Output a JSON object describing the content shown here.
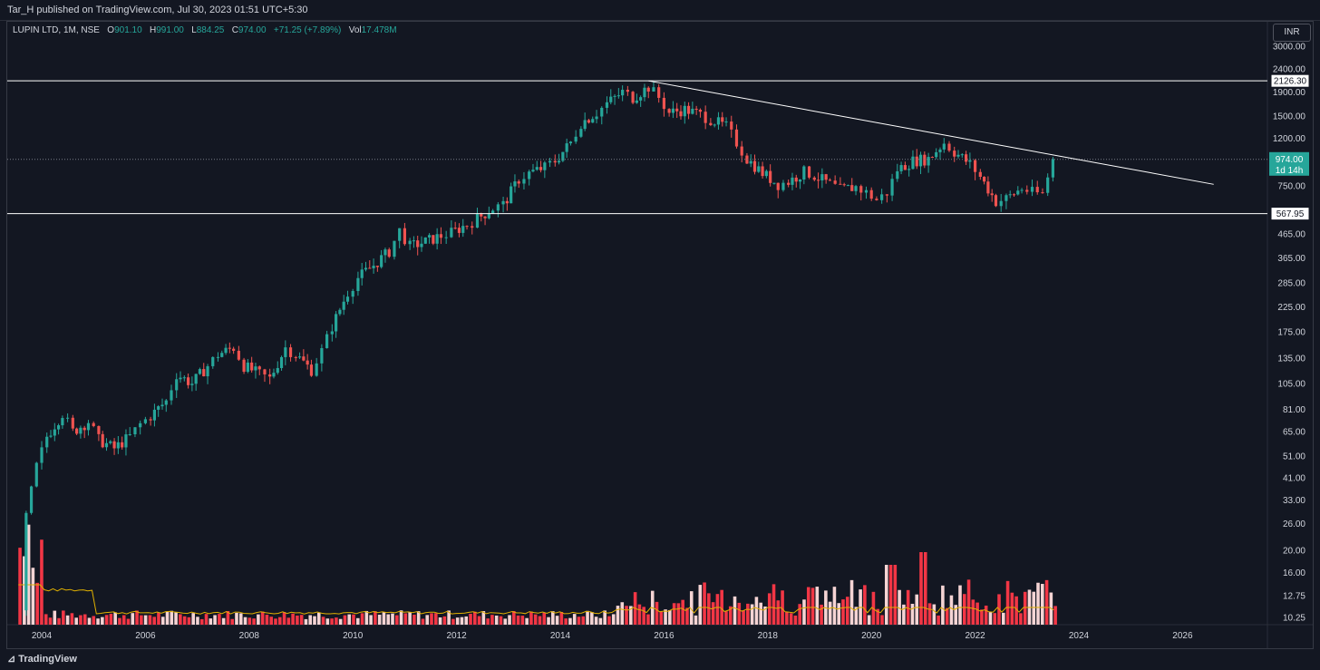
{
  "header": {
    "published_text": "Tar_H published on TradingView.com, Jul 30, 2023 01:51 UTC+5:30"
  },
  "legend": {
    "symbol": "LUPIN LTD, 1M, NSE",
    "open_label": "O",
    "open": "901.10",
    "high_label": "H",
    "high": "991.00",
    "low_label": "L",
    "low": "884.25",
    "close_label": "C",
    "close": "974.00",
    "change": "+71.25 (+7.89%)",
    "vol_label": "Vol",
    "vol": "17.478M"
  },
  "currency": "INR",
  "footer": {
    "brand": "TradingView"
  },
  "colors": {
    "bg": "#131722",
    "up": "#26a69a",
    "down": "#ef5350",
    "vol_up": "#f5d4d4",
    "vol_down": "#f23645",
    "vol_ma": "#e0b000",
    "line": "#ffffff"
  },
  "chart_data": {
    "type": "candlestick",
    "y_scale": "log",
    "y_ticks": [
      "3000.00",
      "2400.00",
      "1900.00",
      "1500.00",
      "1200.00",
      "750.00",
      "465.00",
      "365.00",
      "285.00",
      "225.00",
      "175.00",
      "135.00",
      "105.00",
      "81.00",
      "65.00",
      "51.00",
      "41.00",
      "33.00",
      "26.00",
      "20.00",
      "16.00",
      "12.75",
      "10.25"
    ],
    "x_ticks": [
      "2004",
      "2006",
      "2008",
      "2010",
      "2012",
      "2014",
      "2016",
      "2018",
      "2020",
      "2022",
      "2024",
      "2026"
    ],
    "levels": [
      {
        "label": "2126.30",
        "value": 2126.3
      },
      {
        "label": "567.95",
        "value": 567.95
      }
    ],
    "current_price": {
      "label": "974.00",
      "value": 974.0,
      "countdown": "1d 14h"
    },
    "trendline": {
      "from": {
        "year": 2015.7,
        "value": 2126.3
      },
      "to": {
        "year": 2026.6,
        "value": 760
      }
    },
    "series": [
      {
        "year": 2003.6,
        "value": 11
      },
      {
        "year": 2003.7,
        "value": 28
      },
      {
        "year": 2003.9,
        "value": 46
      },
      {
        "year": 2004.1,
        "value": 62
      },
      {
        "year": 2004.4,
        "value": 78
      },
      {
        "year": 2004.6,
        "value": 65
      },
      {
        "year": 2004.9,
        "value": 72
      },
      {
        "year": 2005.1,
        "value": 60
      },
      {
        "year": 2005.4,
        "value": 55
      },
      {
        "year": 2005.7,
        "value": 62
      },
      {
        "year": 2005.9,
        "value": 70
      },
      {
        "year": 2006.1,
        "value": 76
      },
      {
        "year": 2006.4,
        "value": 88
      },
      {
        "year": 2006.6,
        "value": 115
      },
      {
        "year": 2006.9,
        "value": 105
      },
      {
        "year": 2007.2,
        "value": 125
      },
      {
        "year": 2007.4,
        "value": 140
      },
      {
        "year": 2007.7,
        "value": 150
      },
      {
        "year": 2007.9,
        "value": 125
      },
      {
        "year": 2008.2,
        "value": 115
      },
      {
        "year": 2008.4,
        "value": 110
      },
      {
        "year": 2008.7,
        "value": 150
      },
      {
        "year": 2008.9,
        "value": 140
      },
      {
        "year": 2009.2,
        "value": 120
      },
      {
        "year": 2009.4,
        "value": 145
      },
      {
        "year": 2009.6,
        "value": 185
      },
      {
        "year": 2009.9,
        "value": 260
      },
      {
        "year": 2010.1,
        "value": 300
      },
      {
        "year": 2010.4,
        "value": 340
      },
      {
        "year": 2010.7,
        "value": 390
      },
      {
        "year": 2010.9,
        "value": 480
      },
      {
        "year": 2011.1,
        "value": 410
      },
      {
        "year": 2011.4,
        "value": 430
      },
      {
        "year": 2011.7,
        "value": 455
      },
      {
        "year": 2011.9,
        "value": 470
      },
      {
        "year": 2012.2,
        "value": 510
      },
      {
        "year": 2012.4,
        "value": 540
      },
      {
        "year": 2012.7,
        "value": 600
      },
      {
        "year": 2012.9,
        "value": 620
      },
      {
        "year": 2013.2,
        "value": 800
      },
      {
        "year": 2013.4,
        "value": 850
      },
      {
        "year": 2013.7,
        "value": 900
      },
      {
        "year": 2013.9,
        "value": 960
      },
      {
        "year": 2014.2,
        "value": 1150
      },
      {
        "year": 2014.4,
        "value": 1400
      },
      {
        "year": 2014.7,
        "value": 1550
      },
      {
        "year": 2014.9,
        "value": 1700
      },
      {
        "year": 2015.2,
        "value": 1900
      },
      {
        "year": 2015.4,
        "value": 1800
      },
      {
        "year": 2015.7,
        "value": 2000
      },
      {
        "year": 2015.9,
        "value": 1800
      },
      {
        "year": 2016.1,
        "value": 1550
      },
      {
        "year": 2016.4,
        "value": 1600
      },
      {
        "year": 2016.7,
        "value": 1520
      },
      {
        "year": 2016.9,
        "value": 1450
      },
      {
        "year": 2017.2,
        "value": 1350
      },
      {
        "year": 2017.4,
        "value": 1150
      },
      {
        "year": 2017.6,
        "value": 980
      },
      {
        "year": 2017.9,
        "value": 850
      },
      {
        "year": 2018.2,
        "value": 760
      },
      {
        "year": 2018.4,
        "value": 780
      },
      {
        "year": 2018.7,
        "value": 860
      },
      {
        "year": 2018.9,
        "value": 830
      },
      {
        "year": 2019.2,
        "value": 760
      },
      {
        "year": 2019.4,
        "value": 720
      },
      {
        "year": 2019.7,
        "value": 740
      },
      {
        "year": 2019.9,
        "value": 700
      },
      {
        "year": 2020.1,
        "value": 650
      },
      {
        "year": 2020.3,
        "value": 700
      },
      {
        "year": 2020.5,
        "value": 880
      },
      {
        "year": 2020.8,
        "value": 960
      },
      {
        "year": 2021.1,
        "value": 980
      },
      {
        "year": 2021.4,
        "value": 1150
      },
      {
        "year": 2021.6,
        "value": 1050
      },
      {
        "year": 2021.9,
        "value": 930
      },
      {
        "year": 2022.1,
        "value": 820
      },
      {
        "year": 2022.4,
        "value": 640
      },
      {
        "year": 2022.6,
        "value": 660
      },
      {
        "year": 2022.9,
        "value": 730
      },
      {
        "year": 2023.1,
        "value": 700
      },
      {
        "year": 2023.3,
        "value": 690
      },
      {
        "year": 2023.5,
        "value": 974
      }
    ]
  }
}
